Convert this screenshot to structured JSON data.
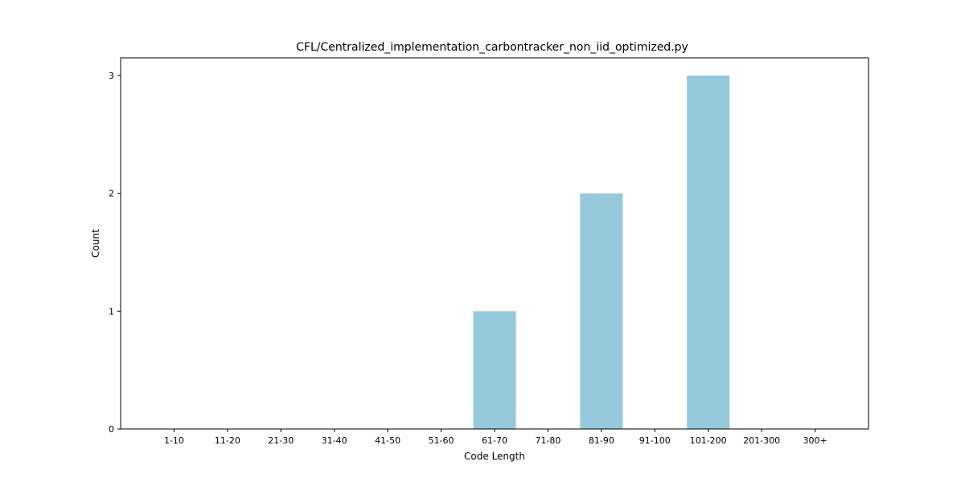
{
  "chart_data": {
    "type": "bar",
    "title": "CFL/Centralized_implementation_carbontracker_non_iid_optimized.py",
    "xlabel": "Code Length",
    "ylabel": "Count",
    "categories": [
      "1-10",
      "11-20",
      "21-30",
      "31-40",
      "41-50",
      "51-60",
      "61-70",
      "71-80",
      "81-90",
      "91-100",
      "101-200",
      "201-300",
      "300+"
    ],
    "values": [
      0,
      0,
      0,
      0,
      0,
      0,
      1,
      0,
      2,
      0,
      3,
      0,
      0
    ],
    "yticks": [
      0,
      1,
      2,
      3
    ],
    "ylim": [
      0,
      3.15
    ],
    "bar_color": "#96c9dc",
    "grid": false,
    "legend": "none"
  }
}
